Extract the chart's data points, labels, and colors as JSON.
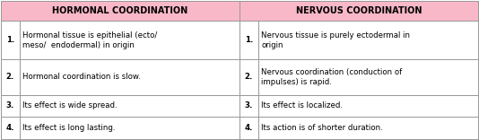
{
  "title_left": "HORMONAL COORDINATION",
  "title_right": "NERVOUS COORDINATION",
  "header_bg": "#f9b8c8",
  "border_color": "#999999",
  "rows": [
    {
      "num_left": "1.",
      "text_left": "Hormonal tissue is epithelial (ecto/\nmeso/  endodermal) in origin",
      "num_right": "1.",
      "text_right": "Nervous tissue is purely ectodermal in\norigin"
    },
    {
      "num_left": "2.",
      "text_left": "Hormonal coordination is slow.",
      "num_right": "2.",
      "text_right": "Nervous coordination (conduction of\nimpulses) is rapid."
    },
    {
      "num_left": "3.",
      "text_left": "Its effect is wide spread.",
      "num_right": "3.",
      "text_right": "Its effect is localized."
    },
    {
      "num_left": "4.",
      "text_left": "Its effect is long lasting.",
      "num_right": "4.",
      "text_right": "Its action is of shorter duration."
    }
  ],
  "fig_width": 5.34,
  "fig_height": 1.56,
  "dpi": 100,
  "font_size_header": 7.0,
  "font_size_body": 6.2,
  "font_size_num": 6.2
}
